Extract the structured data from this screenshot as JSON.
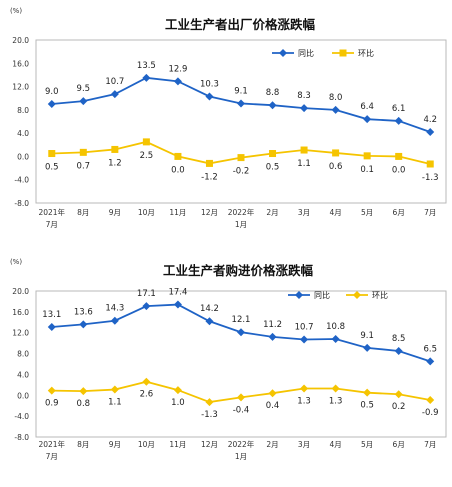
{
  "chart_data": [
    {
      "type": "line",
      "title": "工业生产者出厂价格涨跌幅",
      "unit_label": "(%)",
      "categories": [
        "2021年7月",
        "8月",
        "9月",
        "10月",
        "11月",
        "12月",
        "2022年1月",
        "2月",
        "3月",
        "4月",
        "5月",
        "6月",
        "7月"
      ],
      "x_tick_lines": [
        [
          "2021年",
          "7月"
        ],
        [
          "8月"
        ],
        [
          "9月"
        ],
        [
          "10月"
        ],
        [
          "11月"
        ],
        [
          "12月"
        ],
        [
          "2022年",
          "1月"
        ],
        [
          "2月"
        ],
        [
          "3月"
        ],
        [
          "4月"
        ],
        [
          "5月"
        ],
        [
          "6月"
        ],
        [
          "7月"
        ]
      ],
      "ylim": [
        -8.0,
        20.0
      ],
      "yticks": [
        "20.0",
        "16.0",
        "12.0",
        "8.0",
        "4.0",
        "0.0",
        "-4.0",
        "-8.0"
      ],
      "grid": false,
      "legend_position": "top-right",
      "series": [
        {
          "name": "同比",
          "color": "#1f63c6",
          "marker": "diamond",
          "values": [
            9.0,
            9.5,
            10.7,
            13.5,
            12.9,
            10.3,
            9.1,
            8.8,
            8.3,
            8.0,
            6.4,
            6.1,
            4.2
          ],
          "labels": [
            "9.0",
            "9.5",
            "10.7",
            "13.5",
            "12.9",
            "10.3",
            "9.1",
            "8.8",
            "8.3",
            "8.0",
            "6.4",
            "6.1",
            "4.2"
          ]
        },
        {
          "name": "环比",
          "color": "#f5c400",
          "marker": "square",
          "values": [
            0.5,
            0.7,
            1.2,
            2.5,
            0.0,
            -1.2,
            -0.2,
            0.5,
            1.1,
            0.6,
            0.1,
            0.0,
            -1.3
          ],
          "labels": [
            "0.5",
            "0.7",
            "1.2",
            "2.5",
            "0.0",
            "-1.2",
            "-0.2",
            "0.5",
            "1.1",
            "0.6",
            "0.1",
            "0.0",
            "-1.3"
          ]
        }
      ]
    },
    {
      "type": "line",
      "title": "工业生产者购进价格涨跌幅",
      "unit_label": "(%)",
      "categories": [
        "2021年7月",
        "8月",
        "9月",
        "10月",
        "11月",
        "12月",
        "2022年1月",
        "2月",
        "3月",
        "4月",
        "5月",
        "6月",
        "7月"
      ],
      "x_tick_lines": [
        [
          "2021年",
          "7月"
        ],
        [
          "8月"
        ],
        [
          "9月"
        ],
        [
          "10月"
        ],
        [
          "11月"
        ],
        [
          "12月"
        ],
        [
          "2022年",
          "1月"
        ],
        [
          "2月"
        ],
        [
          "3月"
        ],
        [
          "4月"
        ],
        [
          "5月"
        ],
        [
          "6月"
        ],
        [
          "7月"
        ]
      ],
      "ylim": [
        -8.0,
        20.0
      ],
      "yticks": [
        "20.0",
        "16.0",
        "12.0",
        "8.0",
        "4.0",
        "0.0",
        "-4.0",
        "-8.0"
      ],
      "grid": false,
      "legend_position": "top-right",
      "series": [
        {
          "name": "同比",
          "color": "#1f63c6",
          "marker": "diamond",
          "values": [
            13.1,
            13.6,
            14.3,
            17.1,
            17.4,
            14.2,
            12.1,
            11.2,
            10.7,
            10.8,
            9.1,
            8.5,
            6.5
          ],
          "labels": [
            "13.1",
            "13.6",
            "14.3",
            "17.1",
            "17.4",
            "14.2",
            "12.1",
            "11.2",
            "10.7",
            "10.8",
            "9.1",
            "8.5",
            "6.5"
          ]
        },
        {
          "name": "环比",
          "color": "#f5c400",
          "marker": "diamond",
          "values": [
            0.9,
            0.8,
            1.1,
            2.6,
            1.0,
            -1.3,
            -0.4,
            0.4,
            1.3,
            1.3,
            0.5,
            0.2,
            -0.9
          ],
          "labels": [
            "0.9",
            "0.8",
            "1.1",
            "2.6",
            "1.0",
            "-1.3",
            "-0.4",
            "0.4",
            "1.3",
            "1.3",
            "0.5",
            "0.2",
            "-0.9"
          ]
        }
      ]
    }
  ]
}
